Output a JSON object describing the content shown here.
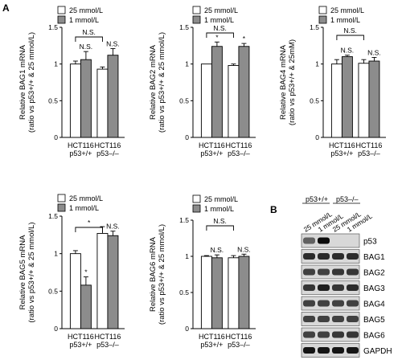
{
  "panels": {
    "A": "A",
    "B": "B"
  },
  "chart_data": [
    {
      "type": "bar",
      "ylabel": [
        "Relative BAG1 mRNA",
        "(ratio vs p53+/+ & 25 mmol/L)"
      ],
      "ylim": [
        0,
        1.5
      ],
      "yticks": [
        "0",
        "0.5",
        "1",
        "1.5"
      ],
      "categories": [
        [
          "HCT116",
          "p53+/+"
        ],
        [
          "HCT116",
          "p53–/–"
        ]
      ],
      "series": [
        {
          "name": "25 mmol/L",
          "values": [
            1.0,
            0.93
          ],
          "errors": [
            0.04,
            0.03
          ]
        },
        {
          "name": "1 mmol/L",
          "values": [
            1.06,
            1.12
          ],
          "errors": [
            0.11,
            0.09
          ]
        }
      ],
      "bracket_label": "N.S.",
      "bar_labels": [
        [
          "",
          "N.S."
        ],
        [
          "",
          "N.S."
        ]
      ]
    },
    {
      "type": "bar",
      "ylabel": [
        "Relative BAG2 mRNA",
        "(ratio vs p53+/+ & 25 mmol/L)"
      ],
      "ylim": [
        0,
        1.5
      ],
      "yticks": [
        "0",
        "0.5",
        "1",
        "1.5"
      ],
      "categories": [
        [
          "HCT116",
          "p53+/+"
        ],
        [
          "HCT116",
          "p53–/–"
        ]
      ],
      "series": [
        {
          "name": "25 mmol/L",
          "values": [
            1.0,
            0.98
          ],
          "errors": [
            0.0,
            0.02
          ]
        },
        {
          "name": "1 mmol/L",
          "values": [
            1.24,
            1.24
          ],
          "errors": [
            0.06,
            0.04
          ]
        }
      ],
      "bracket_label": "N.S.",
      "bar_labels": [
        [
          "",
          "*"
        ],
        [
          "",
          "*"
        ]
      ]
    },
    {
      "type": "bar",
      "ylabel": [
        "Relative BAG4 mRNA",
        "(ratio vs p53+/+ & 25mM)"
      ],
      "ylim": [
        0,
        1.5
      ],
      "yticks": [
        "0",
        "0.5",
        "1",
        "1.5"
      ],
      "categories": [
        [
          "HCT116",
          "p53+/+"
        ],
        [
          "HCT116",
          "p53–/–"
        ]
      ],
      "series": [
        {
          "name": "25 mmol/L",
          "values": [
            1.0,
            1.01
          ],
          "errors": [
            0.06,
            0.05
          ]
        },
        {
          "name": "1 mmol/L",
          "values": [
            1.1,
            1.04
          ],
          "errors": [
            0.02,
            0.05
          ]
        }
      ],
      "bracket_label": "N.S.",
      "bar_labels": [
        [
          "",
          "N.S."
        ],
        [
          "",
          "N.S."
        ]
      ]
    },
    {
      "type": "bar",
      "ylabel": [
        "Relative BAG5 mRNA",
        "(ratio vs p53+/+ & 25 mmol/L)"
      ],
      "ylim": [
        0,
        1.5
      ],
      "yticks": [
        "0",
        "0.5",
        "1",
        "1.5"
      ],
      "categories": [
        [
          "HCT116",
          "p53+/+"
        ],
        [
          "HCT116",
          "p53–/–"
        ]
      ],
      "series": [
        {
          "name": "25 mmol/L",
          "values": [
            1.0,
            1.27
          ],
          "errors": [
            0.04,
            0.09
          ]
        },
        {
          "name": "1 mmol/L",
          "values": [
            0.58,
            1.24
          ],
          "errors": [
            0.11,
            0.06
          ]
        }
      ],
      "bracket_label": "*",
      "bar_labels": [
        [
          "",
          "*"
        ],
        [
          "",
          "N.S."
        ]
      ]
    },
    {
      "type": "bar",
      "ylabel": [
        "Relative BAG6 mRNA",
        "(ratio vs p53+/+ & 25 mmol/L)"
      ],
      "ylim": [
        0,
        1.5
      ],
      "yticks": [
        "0",
        "0.5",
        "1",
        "1.5"
      ],
      "categories": [
        [
          "HCT116",
          "p53+/+"
        ],
        [
          "HCT116",
          "p53–/–"
        ]
      ],
      "series": [
        {
          "name": "25 mmol/L",
          "values": [
            1.0,
            0.98
          ],
          "errors": [
            0.01,
            0.03
          ]
        },
        {
          "name": "1 mmol/L",
          "values": [
            0.98,
            1.0
          ],
          "errors": [
            0.04,
            0.03
          ]
        }
      ],
      "bracket_label": "N.S.",
      "bar_labels": [
        [
          "",
          "N.S."
        ],
        [
          "",
          "N.S."
        ]
      ]
    }
  ],
  "colors": {
    "series_0": "#ffffff",
    "series_1": "#8c8c8c"
  },
  "blot": {
    "groups": [
      "p53+/+",
      "p53–/–"
    ],
    "lanes": [
      "25 mmol/L",
      "1 mmol/L",
      "25 mmol/L",
      "1 mmol/L"
    ],
    "rows": [
      "p53",
      "BAG1",
      "BAG2",
      "BAG3",
      "BAG4",
      "BAG5",
      "BAG6",
      "GAPDH"
    ]
  }
}
